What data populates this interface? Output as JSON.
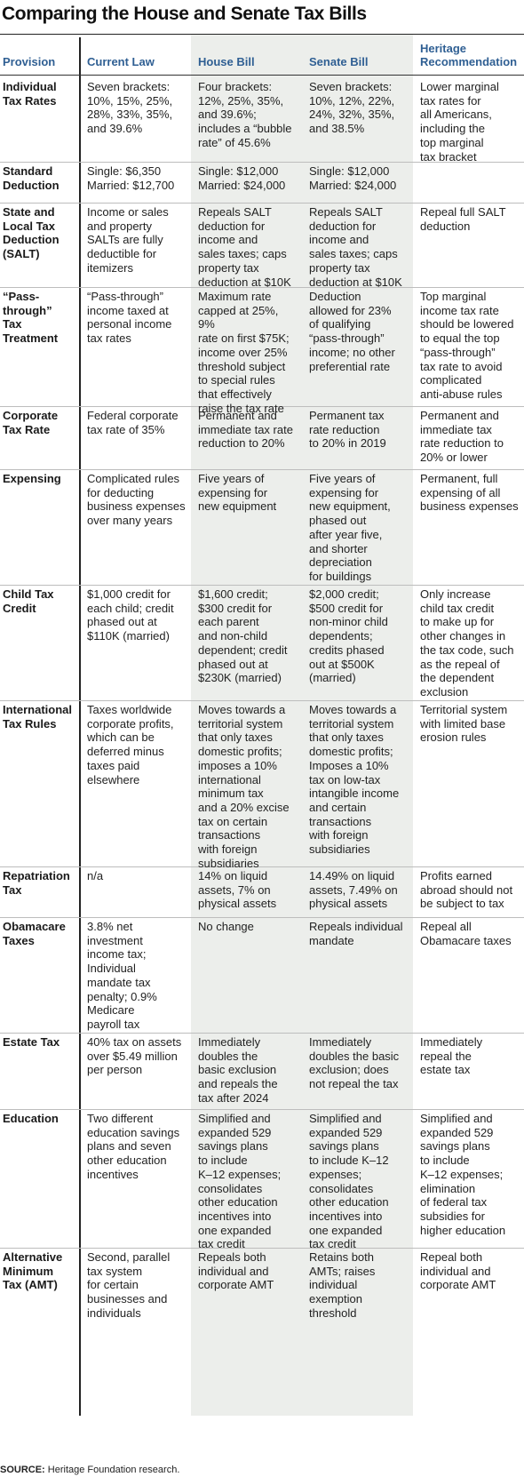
{
  "title": "Comparing the House and Senate Tax Bills",
  "columns": [
    "Provision",
    "Current Law",
    "House Bill",
    "Senate Bill",
    "Heritage\nRecommendation"
  ],
  "rows": [
    {
      "provision": "Individual\nTax Rates",
      "current": "Seven brackets:\n10%, 15%, 25%,\n28%, 33%, 35%,\nand 39.6%",
      "house": "Four brackets:\n12%, 25%, 35%,\nand 39.6%;\nincludes a “bubble\nrate” of 45.6%",
      "senate": "Seven brackets:\n10%, 12%, 22%,\n24%, 32%, 35%,\nand 38.5%",
      "heritage": "Lower marginal\ntax rates for\nall Americans,\nincluding the\ntop marginal\ntax bracket"
    },
    {
      "provision": "Standard\nDeduction",
      "current": "Single: $6,350\nMarried: $12,700",
      "house": "Single: $12,000\nMarried: $24,000",
      "senate": "Single: $12,000\nMarried: $24,000",
      "heritage": ""
    },
    {
      "provision": "State and\nLocal Tax\nDeduction\n(SALT)",
      "current": "Income or sales\nand property\nSALTs are fully\ndeductible for\nitemizers",
      "house": "Repeals SALT\ndeduction for\nincome and\nsales taxes; caps\nproperty tax\ndeduction at $10K",
      "senate": "Repeals SALT\ndeduction for\nincome and\nsales taxes; caps\nproperty tax\ndeduction at $10K",
      "heritage": "Repeal full SALT\ndeduction"
    },
    {
      "provision": "“Pass-\nthrough” Tax\nTreatment",
      "current": "“Pass-through”\nincome taxed at\npersonal income\ntax rates",
      "house": "Maximum rate\ncapped at 25%, 9%\nrate on first $75K;\nincome over 25%\nthreshold subject\nto special rules\nthat effectively\nraise the tax rate",
      "senate": "Deduction\nallowed for 23%\nof qualifying\n“pass-through”\nincome; no other\npreferential rate",
      "heritage": "Top marginal\nincome tax rate\nshould be lowered\nto equal the top\n“pass-through”\ntax rate to avoid\ncomplicated\nanti-abuse rules"
    },
    {
      "provision": "Corporate\nTax Rate",
      "current": "Federal corporate\ntax rate of 35%",
      "house": "Permanent and\nimmediate tax rate\nreduction to 20%",
      "senate": "Permanent tax\nrate reduction\nto 20% in 2019",
      "heritage": "Permanent and\nimmediate tax\nrate reduction to\n20% or lower"
    },
    {
      "provision": "Expensing",
      "current": "Complicated rules\nfor deducting\nbusiness expenses\nover many years",
      "house": "Five years of\nexpensing for\nnew equipment",
      "senate": "Five years of\nexpensing for\nnew equipment,\nphased out\nafter year five,\nand shorter\ndepreciation\nfor buildings",
      "heritage": "Permanent, full\nexpensing of all\nbusiness expenses"
    },
    {
      "provision": "Child Tax\nCredit",
      "current": "$1,000 credit for\neach child; credit\nphased out at\n$110K (married)",
      "house": "$1,600 credit;\n$300 credit for\neach parent\nand non-child\ndependent; credit\nphased out at\n$230K (married)",
      "senate": "$2,000 credit;\n$500 credit for\nnon-minor child\ndependents;\ncredits phased\nout at $500K\n(married)",
      "heritage": "Only increase\nchild tax credit\nto make up for\nother changes in\nthe tax code, such\nas the repeal of\nthe dependent\nexclusion"
    },
    {
      "provision": "International\nTax Rules",
      "current": "Taxes worldwide\ncorporate profits,\nwhich can be\ndeferred minus\ntaxes paid\nelsewhere",
      "house": "Moves towards a\nterritorial system\nthat only taxes\ndomestic profits;\nimposes a 10%\ninternational\nminimum tax\nand a 20% excise\ntax on certain\ntransactions\nwith foreign\nsubsidiaries",
      "senate": "Moves towards a\nterritorial system\nthat only taxes\ndomestic profits;\nImposes a 10%\ntax on low-tax\nintangible income\nand certain\ntransactions\nwith foreign\nsubsidiaries",
      "heritage": "Territorial system\nwith limited base\nerosion rules"
    },
    {
      "provision": "Repatriation\nTax",
      "current": "n/a",
      "house": "14% on liquid\nassets, 7% on\nphysical assets",
      "senate": "14.49% on liquid\nassets, 7.49% on\nphysical assets",
      "heritage": "Profits earned\nabroad should not\nbe subject to tax"
    },
    {
      "provision": "Obamacare\nTaxes",
      "current": "3.8% net\ninvestment\nincome tax;\nIndividual\nmandate tax\npenalty; 0.9%\nMedicare\npayroll tax",
      "house": "No change",
      "senate": "Repeals individual\nmandate",
      "heritage": "Repeal all\nObamacare taxes"
    },
    {
      "provision": "Estate Tax",
      "current": "40% tax on assets\nover $5.49 million\nper person",
      "house": "Immediately\ndoubles the\nbasic exclusion\nand repeals the\ntax after 2024",
      "senate": "Immediately\ndoubles the basic\nexclusion; does\nnot repeal the tax",
      "heritage": "Immediately\nrepeal the\nestate tax"
    },
    {
      "provision": "Education",
      "current": "Two different\neducation savings\nplans and seven\nother education\nincentives",
      "house": "Simplified and\nexpanded 529\nsavings plans\nto include\nK–12 expenses;\nconsolidates\nother education\nincentives into\none expanded\ntax credit",
      "senate": "Simplified and\nexpanded 529\nsavings plans\nto include K–12\nexpenses;\nconsolidates\nother education\nincentives into\none expanded\ntax credit",
      "heritage": "Simplified and\nexpanded 529\nsavings plans\nto include\nK–12 expenses;\nelimination\nof federal tax\nsubsidies for\nhigher education"
    },
    {
      "provision": "Alternative\nMinimum\nTax (AMT)",
      "current": "Second, parallel\ntax system\nfor certain\nbusinesses and\nindividuals",
      "house": "Repeals both\nindividual and\ncorporate AMT",
      "senate": "Retains both\nAMTs; raises\nindividual\nexemption\nthreshold",
      "heritage": "Repeal both\nindividual and\ncorporate AMT"
    }
  ],
  "source_label": "SOURCE:",
  "source_text": " Heritage Foundation research."
}
